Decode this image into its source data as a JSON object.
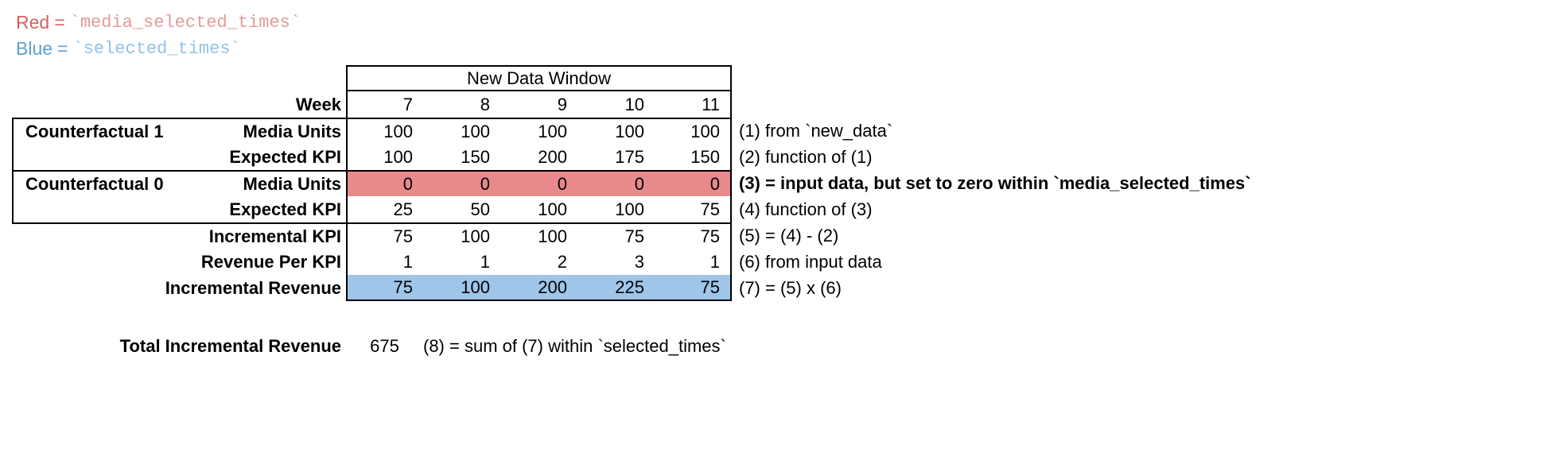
{
  "legend": {
    "red": {
      "label": "Red",
      "eq": "=",
      "code": "`media_selected_times`"
    },
    "blue": {
      "label": "Blue",
      "eq": "=",
      "code": "`selected_times`"
    }
  },
  "table": {
    "header": "New Data Window",
    "week_label": "Week",
    "weeks": [
      "7",
      "8",
      "9",
      "10",
      "11"
    ],
    "rows": [
      {
        "group": "Counterfactual 1",
        "label": "Media Units",
        "values": [
          "100",
          "100",
          "100",
          "100",
          "100"
        ],
        "annotation": "(1) from `new_data`"
      },
      {
        "group": "",
        "label": "Expected KPI",
        "values": [
          "100",
          "150",
          "200",
          "175",
          "150"
        ],
        "annotation": "(2) function of (1)"
      },
      {
        "group": "Counterfactual 0",
        "label": "Media Units",
        "values": [
          "0",
          "0",
          "0",
          "0",
          "0"
        ],
        "annotation": "(3) = input data, but set to zero within `media_selected_times`"
      },
      {
        "group": "",
        "label": "Expected KPI",
        "values": [
          "25",
          "50",
          "100",
          "100",
          "75"
        ],
        "annotation": "(4) function of (3)"
      },
      {
        "group": "",
        "label": "Incremental KPI",
        "values": [
          "75",
          "100",
          "100",
          "75",
          "75"
        ],
        "annotation": "(5) = (4) - (2)"
      },
      {
        "group": "",
        "label": "Revenue Per KPI",
        "values": [
          "1",
          "1",
          "2",
          "3",
          "1"
        ],
        "annotation": "(6) from input data"
      },
      {
        "group": "",
        "label": "Incremental Revenue",
        "values": [
          "75",
          "100",
          "200",
          "225",
          "75"
        ],
        "annotation": "(7) = (5) x (6)"
      }
    ]
  },
  "total": {
    "label": "Total Incremental Revenue",
    "value": "675",
    "annotation": "(8) = sum of (7) within `selected_times`"
  },
  "colors": {
    "red_highlight": "#e8898c",
    "blue_highlight": "#9fc5e8",
    "red_label": "#d85f5f",
    "red_code": "#e59a9b",
    "blue_label": "#5f9fd6",
    "blue_code": "#90c2ea"
  }
}
